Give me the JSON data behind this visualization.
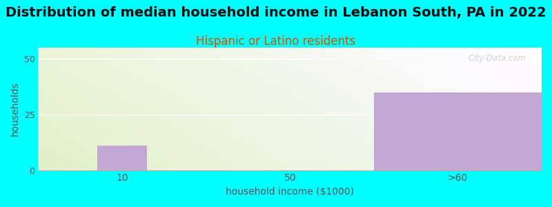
{
  "title": "Distribution of median household income in Lebanon South, PA in 2022",
  "subtitle": "Hispanic or Latino residents",
  "xlabel": "household income ($1000)",
  "ylabel": "households",
  "background_color": "#00FFFF",
  "bar_color": "#c4a8d4",
  "bar_edge_color": "#b090c0",
  "categories": [
    "10",
    "50",
    ">60"
  ],
  "values": [
    11,
    0,
    35
  ],
  "ylim": [
    0,
    55
  ],
  "yticks": [
    0,
    25,
    50
  ],
  "title_fontsize": 14,
  "subtitle_fontsize": 12,
  "subtitle_color": "#cc5500",
  "ylabel_color": "#555555",
  "xlabel_color": "#555555",
  "watermark": "City-Data.com",
  "watermark_color": "#c8c8c8",
  "grid_color": "#ffffff",
  "tick_label_color": "#555555"
}
